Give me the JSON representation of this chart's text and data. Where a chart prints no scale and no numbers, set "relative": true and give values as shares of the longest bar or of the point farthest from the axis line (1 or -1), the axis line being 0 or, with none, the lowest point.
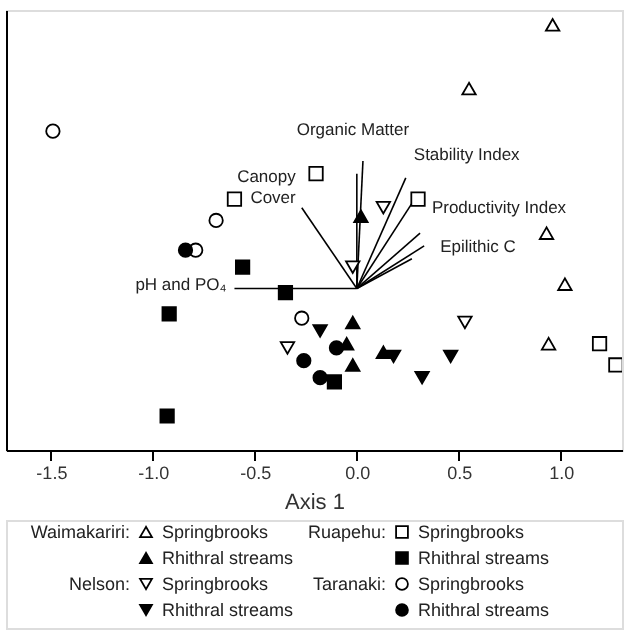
{
  "chart_data": {
    "type": "scatter",
    "xlabel": "Axis 1",
    "xlim": [
      -1.72,
      1.3
    ],
    "xticks": [
      {
        "value": -1.5,
        "label": "-1.5"
      },
      {
        "value": -1.0,
        "label": "-1.0"
      },
      {
        "value": -0.5,
        "label": "-0.5"
      },
      {
        "value": 0.0,
        "label": "0.0"
      },
      {
        "value": 0.5,
        "label": "0.5"
      },
      {
        "value": 1.0,
        "label": "1.0"
      }
    ],
    "relative": true,
    "grid": false,
    "legend": "bottom",
    "series": [
      {
        "type": "line",
        "name": "pH and PO₄",
        "color": "#000000",
        "x": [
          0,
          -0.6
        ],
        "values": [
          0.38,
          0.38
        ]
      },
      {
        "type": "line",
        "name": "Organic Matter",
        "color": "#000000",
        "x": [
          0,
          0.03
        ],
        "values": [
          0.38,
          0.68
        ]
      },
      {
        "type": "line",
        "color": "#000000",
        "x": [
          0,
          0.0
        ],
        "values": [
          0.38,
          0.65
        ]
      },
      {
        "type": "line",
        "name": "Canopy\nCover",
        "color": "#000000",
        "x": [
          0,
          -0.27
        ],
        "values": [
          0.38,
          0.57
        ]
      },
      {
        "type": "line",
        "name": "Stability Index",
        "color": "#000000",
        "x": [
          0,
          0.24
        ],
        "values": [
          0.38,
          0.64
        ]
      },
      {
        "type": "line",
        "name": "Productivity Index",
        "color": "#000000",
        "x": [
          0,
          0.27
        ],
        "values": [
          0.38,
          0.58
        ]
      },
      {
        "type": "line",
        "color": "#000000",
        "x": [
          0,
          0.31
        ],
        "values": [
          0.38,
          0.51
        ]
      },
      {
        "type": "line",
        "name": "Epilithic C",
        "color": "#000000",
        "x": [
          0,
          0.33
        ],
        "values": [
          0.38,
          0.48
        ]
      },
      {
        "type": "line",
        "color": "#000000",
        "x": [
          0,
          0.27
        ],
        "values": [
          0.38,
          0.45
        ]
      },
      {
        "name": "Springbrooks",
        "marker": "triangle-up",
        "color": "#ffffff",
        "x": [
          0.96,
          0.55,
          0.93,
          1.02,
          0.94
        ],
        "values": [
          1.0,
          0.85,
          0.51,
          0.39,
          0.25
        ]
      },
      {
        "name": "Rhithral streams",
        "marker": "triangle-up",
        "color": "#000000",
        "x": [
          0.02,
          -0.02,
          -0.05,
          -0.02,
          0.13
        ],
        "values": [
          0.55,
          0.3,
          0.25,
          0.2,
          0.23
        ]
      },
      {
        "name": "Springbrooks",
        "marker": "triangle-down",
        "color": "#ffffff",
        "x": [
          0.13,
          -0.02,
          0.53,
          -0.34
        ],
        "values": [
          0.57,
          0.43,
          0.3,
          0.24
        ]
      },
      {
        "name": "Rhithral streams",
        "marker": "triangle-down",
        "color": "#000000",
        "x": [
          -0.18,
          0.18,
          0.32,
          0.46
        ],
        "values": [
          0.28,
          0.22,
          0.17,
          0.22
        ]
      },
      {
        "name": "Springbrooks",
        "marker": "square",
        "color": "#ffffff",
        "x": [
          -0.2,
          -0.6,
          0.3,
          1.19,
          1.27
        ],
        "values": [
          0.65,
          0.59,
          0.59,
          0.25,
          0.2
        ]
      },
      {
        "name": "Rhithral streams",
        "marker": "square",
        "color": "#000000",
        "x": [
          -0.56,
          -0.35,
          -0.92,
          -0.93,
          -0.11
        ],
        "values": [
          0.43,
          0.37,
          0.32,
          0.08,
          0.16
        ]
      },
      {
        "name": "Springbrooks",
        "marker": "circle",
        "color": "#ffffff",
        "x": [
          -1.49,
          -0.69,
          -0.27,
          -0.79
        ],
        "values": [
          0.75,
          0.54,
          0.31,
          0.47
        ]
      },
      {
        "name": "Rhithral streams",
        "marker": "circle",
        "color": "#000000",
        "x": [
          -0.84,
          -0.26,
          -0.1,
          -0.18
        ],
        "values": [
          0.47,
          0.21,
          0.24,
          0.17
        ]
      }
    ],
    "annotations": [
      "Waimakariri:",
      "Nelson:",
      "Ruapehu:",
      "Taranaki:"
    ]
  }
}
